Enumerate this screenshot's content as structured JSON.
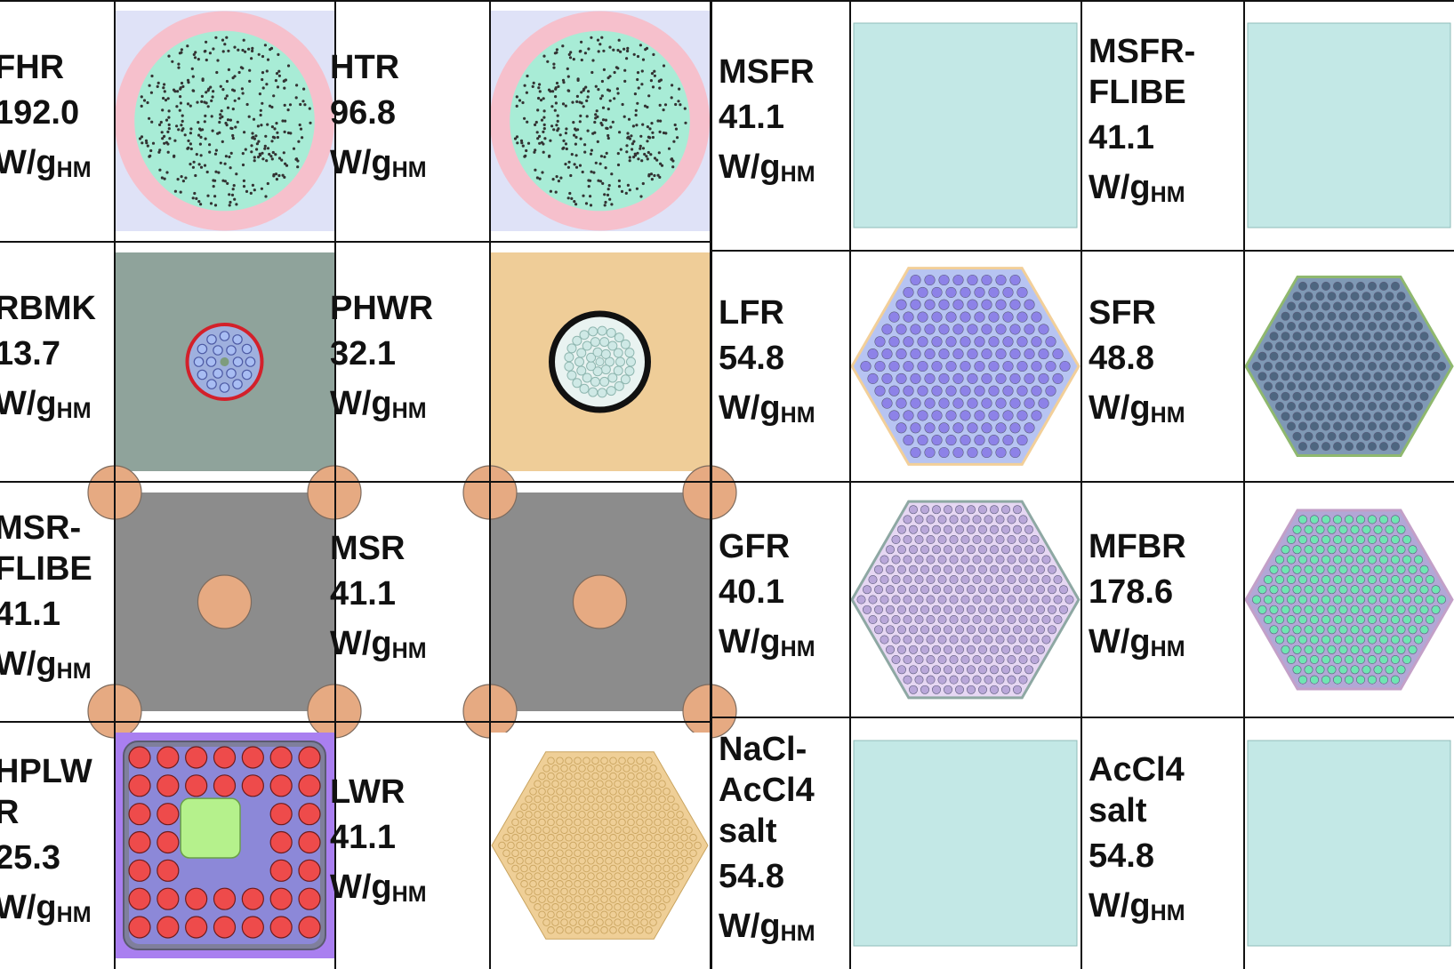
{
  "unit": {
    "base": "W/g",
    "sub": "HM"
  },
  "left": [
    [
      {
        "name": [
          "FHR"
        ],
        "value": "192.0",
        "image": "pebble-core-icon",
        "fill": "#a8ecd6",
        "bg": "#dfe2f7"
      },
      {
        "name": [
          "HTR"
        ],
        "value": "96.8",
        "image": "pebble-core-icon",
        "fill": "#a8ecd6",
        "bg": "#dfe2f7"
      }
    ],
    [
      {
        "name": [
          "RBMK"
        ],
        "value": "13.7",
        "image": "channel-pin-cluster-icon",
        "fill": "#8faaa1",
        "bg": "#8fa39b"
      },
      {
        "name": [
          "PHWR"
        ],
        "value": "32.1",
        "image": "pressure-tube-bundle-icon",
        "fill": "#cfe9e6",
        "bg": "#efcd98"
      }
    ],
    [
      {
        "name": [
          "MSR-",
          "FLIBE"
        ],
        "value": "41.1",
        "image": "graphite-salt-channel-icon",
        "fill": "#e6aa82",
        "bg": "#8c8c8c"
      },
      {
        "name": [
          "MSR"
        ],
        "value": "41.1",
        "image": "graphite-salt-channel-icon",
        "fill": "#e6aa82",
        "bg": "#8c8c8c"
      }
    ],
    [
      {
        "name": [
          "HPLW",
          "R"
        ],
        "value": "25.3",
        "image": "square-pin-lattice-icon",
        "fill": "#ee4b4b",
        "bg": "#a97ff0"
      },
      {
        "name": [
          "LWR"
        ],
        "value": "41.1",
        "image": "hex-pin-assembly-icon",
        "fill": "#efcf97",
        "bg": "#ffffff"
      }
    ]
  ],
  "right": [
    [
      {
        "name": [
          "MSFR"
        ],
        "value": "41.1",
        "image": "homogeneous-salt-icon",
        "fill": "#c3e8e6",
        "bg": "#ffffff"
      },
      {
        "name": [
          "MSFR-",
          "FLIBE"
        ],
        "value": "41.1",
        "image": "homogeneous-salt-icon",
        "fill": "#c3e8e6",
        "bg": "#ffffff"
      }
    ],
    [
      {
        "name": [
          "LFR"
        ],
        "value": "54.8",
        "image": "hex-fuel-assembly-icon",
        "fill": "#8d82e8",
        "bg": "#ffffff"
      },
      {
        "name": [
          "SFR"
        ],
        "value": "48.8",
        "image": "hex-fuel-assembly-icon",
        "fill": "#4d6680",
        "bg": "#ffffff"
      }
    ],
    [
      {
        "name": [
          "GFR"
        ],
        "value": "40.1",
        "image": "hex-fuel-assembly-icon",
        "fill": "#b9a7d9",
        "bg": "#ffffff"
      },
      {
        "name": [
          "MFBR"
        ],
        "value": "178.6",
        "image": "hex-fuel-assembly-icon",
        "fill": "#6fe5b3",
        "bg": "#ffffff"
      }
    ],
    [
      {
        "name": [
          "NaCl-",
          "AcCl4",
          "salt"
        ],
        "value": "54.8",
        "image": "homogeneous-salt-icon",
        "fill": "#c3e8e6",
        "bg": "#ffffff"
      },
      {
        "name": [
          "AcCl4",
          "salt"
        ],
        "value": "54.8",
        "image": "homogeneous-salt-icon",
        "fill": "#c3e8e6",
        "bg": "#ffffff"
      }
    ]
  ]
}
